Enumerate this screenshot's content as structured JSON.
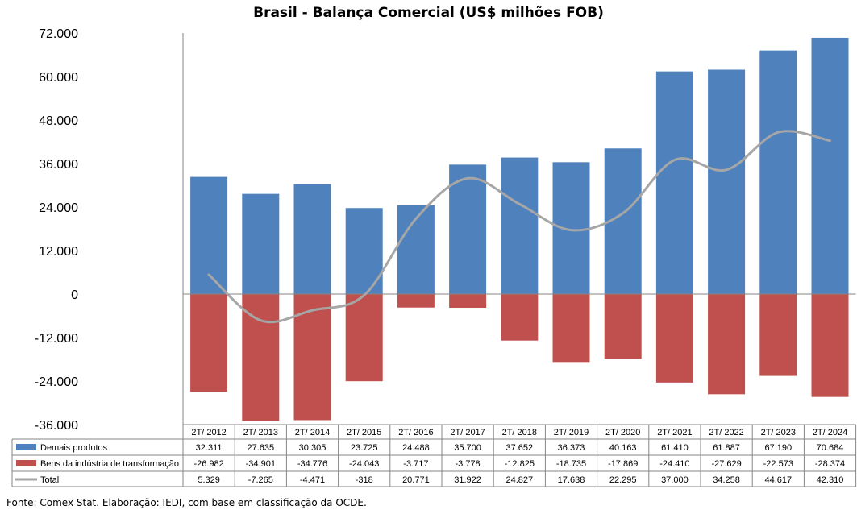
{
  "chart_data": {
    "type": "bar",
    "title": "Brasil - Balança Comercial (US$ milhões FOB)",
    "categories": [
      "2T/ 2012",
      "2T/ 2013",
      "2T/ 2014",
      "2T/ 2015",
      "2T/ 2016",
      "2T/ 2017",
      "2T/ 2018",
      "2T/ 2019",
      "2T/ 2020",
      "2T/ 2021",
      "2T/ 2022",
      "2T/ 2023",
      "2T/ 2024"
    ],
    "ylim": [
      -36000,
      72000
    ],
    "yticks": [
      72000,
      60000,
      48000,
      36000,
      24000,
      12000,
      0,
      -12000,
      -24000,
      -36000
    ],
    "ytick_labels": [
      "72.000",
      "60.000",
      "48.000",
      "36.000",
      "24.000",
      "12.000",
      "0",
      "-12.000",
      "-24.000",
      "-36.000"
    ],
    "grid": false,
    "legend_placement": "data-table-left",
    "series": [
      {
        "name": "Demais produtos",
        "kind": "bar",
        "color": "#4f81bd",
        "values": [
          32311,
          27635,
          30305,
          23725,
          24488,
          35700,
          37652,
          36373,
          40163,
          61410,
          61887,
          67190,
          70684
        ],
        "labels": [
          "32.311",
          "27.635",
          "30.305",
          "23.725",
          "24.488",
          "35.700",
          "37.652",
          "36.373",
          "40.163",
          "61.410",
          "61.887",
          "67.190",
          "70.684"
        ]
      },
      {
        "name": "Bens da indústria de transformação",
        "kind": "bar",
        "color": "#c0504d",
        "values": [
          -26982,
          -34901,
          -34776,
          -24043,
          -3717,
          -3778,
          -12825,
          -18735,
          -17869,
          -24410,
          -27629,
          -22573,
          -28374
        ],
        "labels": [
          "-26.982",
          "-34.901",
          "-34.776",
          "-24.043",
          "-3.717",
          "-3.778",
          "-12.825",
          "-18.735",
          "-17.869",
          "-24.410",
          "-27.629",
          "-22.573",
          "-28.374"
        ]
      },
      {
        "name": "Total",
        "kind": "line",
        "color": "#a6a6a6",
        "values": [
          5329,
          -7265,
          -4471,
          -318,
          20771,
          31922,
          24827,
          17638,
          22295,
          37000,
          34258,
          44617,
          42310
        ],
        "labels": [
          "5.329",
          "-7.265",
          "-4.471",
          "-318",
          "20.771",
          "31.922",
          "24.827",
          "17.638",
          "22.295",
          "37.000",
          "34.258",
          "44.617",
          "42.310"
        ]
      }
    ]
  },
  "source_note": "Fonte: Comex Stat. Elaboração: IEDI, com base em classificação da OCDE."
}
